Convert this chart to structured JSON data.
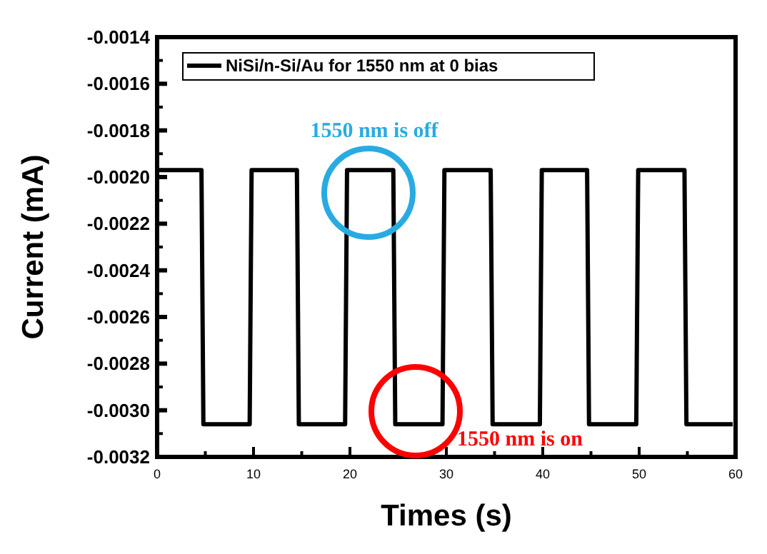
{
  "chart_data": {
    "type": "line",
    "xlabel": "Times (s)",
    "ylabel": "Current (mA)",
    "xlim": [
      0,
      60
    ],
    "xticks": [
      0,
      10,
      20,
      30,
      40,
      50,
      60
    ],
    "ylim": [
      -0.0032,
      -0.0014
    ],
    "yticks": [
      {
        "value": -0.0032,
        "label": "-0.0032"
      },
      {
        "value": -0.003,
        "label": "-0.0030"
      },
      {
        "value": -0.0028,
        "label": "-0.0028"
      },
      {
        "value": -0.0026,
        "label": "-0.0026"
      },
      {
        "value": -0.0024,
        "label": "-0.0024"
      },
      {
        "value": -0.0022,
        "label": "-0.0022"
      },
      {
        "value": -0.002,
        "label": "-0.0020"
      },
      {
        "value": -0.0018,
        "label": "-0.0018"
      },
      {
        "value": -0.0016,
        "label": "-0.0016"
      },
      {
        "value": -0.0014,
        "label": "-0.0014"
      }
    ],
    "legend": "top left",
    "grid": false,
    "line_style": "solid",
    "series": [
      {
        "name": "NiSi/n-Si/Au for 1550 nm at 0 bias",
        "color": "#000000",
        "x": [
          0,
          4.6,
          4.8,
          9.6,
          9.8,
          14.5,
          14.7,
          19.5,
          19.7,
          24.5,
          24.7,
          29.6,
          29.8,
          34.6,
          34.8,
          39.7,
          39.9,
          44.6,
          44.8,
          49.7,
          49.9,
          54.7,
          54.9,
          59.7
        ],
        "values": [
          -0.00197,
          -0.00197,
          -0.00306,
          -0.00306,
          -0.00197,
          -0.00197,
          -0.00306,
          -0.00306,
          -0.00197,
          -0.00197,
          -0.00306,
          -0.00306,
          -0.00197,
          -0.00197,
          -0.00306,
          -0.00306,
          -0.00197,
          -0.00197,
          -0.00306,
          -0.00306,
          -0.00197,
          -0.00197,
          -0.00306,
          -0.00306
        ]
      }
    ],
    "annotations": [
      "1550 nm is off",
      "1550 nm is on"
    ]
  }
}
